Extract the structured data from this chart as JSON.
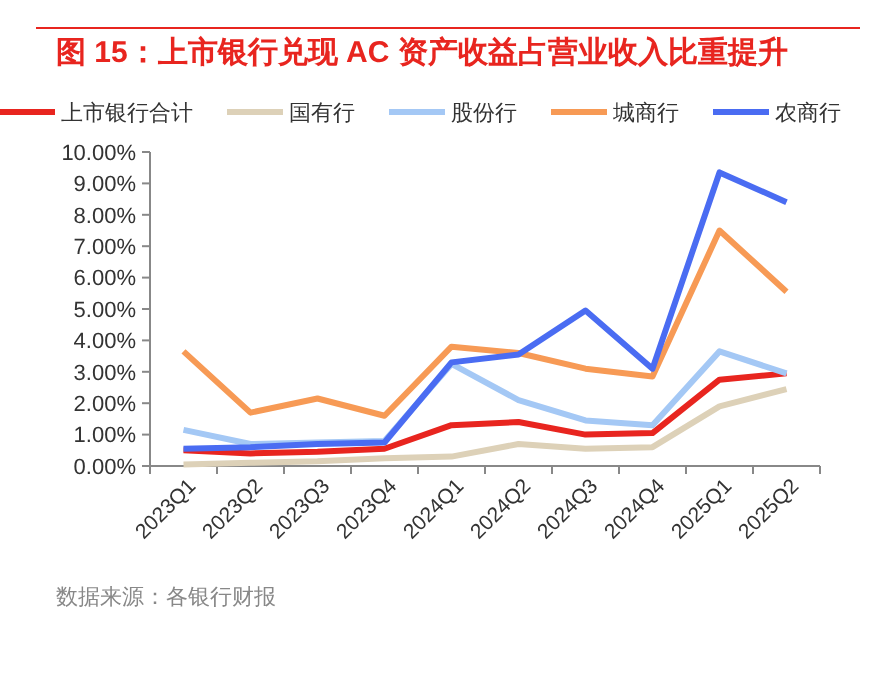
{
  "chart_data": {
    "type": "line",
    "title": "图 15：上市银行兑现 AC 资产收益占营业收入比重提升",
    "categories": [
      "2023Q1",
      "2023Q2",
      "2023Q3",
      "2023Q4",
      "2024Q1",
      "2024Q2",
      "2024Q3",
      "2024Q4",
      "2025Q1",
      "2025Q2"
    ],
    "series": [
      {
        "name": "上市银行合计",
        "color": "#e8251f",
        "values": [
          0.5,
          0.4,
          0.45,
          0.55,
          1.3,
          1.4,
          1.0,
          1.05,
          2.75,
          2.95
        ]
      },
      {
        "name": "国有行",
        "color": "#ddd1b8",
        "values": [
          0.05,
          0.1,
          0.15,
          0.25,
          0.3,
          0.7,
          0.55,
          0.6,
          1.9,
          2.45
        ]
      },
      {
        "name": "股份行",
        "color": "#a4c8f5",
        "values": [
          1.15,
          0.7,
          0.75,
          0.8,
          3.25,
          2.1,
          1.45,
          1.3,
          3.65,
          2.95
        ]
      },
      {
        "name": "城商行",
        "color": "#f79a55",
        "values": [
          3.65,
          1.7,
          2.15,
          1.6,
          3.8,
          3.6,
          3.1,
          2.85,
          7.5,
          5.55
        ]
      },
      {
        "name": "农商行",
        "color": "#4a6cf2",
        "values": [
          0.55,
          0.6,
          0.7,
          0.75,
          3.3,
          3.55,
          4.95,
          3.1,
          9.35,
          8.4
        ]
      }
    ],
    "ylim": [
      0,
      10
    ],
    "yticks": [
      {
        "value": 0,
        "label": "0.00%"
      },
      {
        "value": 1,
        "label": "1.00%"
      },
      {
        "value": 2,
        "label": "2.00%"
      },
      {
        "value": 3,
        "label": "3.00%"
      },
      {
        "value": 4,
        "label": "4.00%"
      },
      {
        "value": 5,
        "label": "5.00%"
      },
      {
        "value": 6,
        "label": "6.00%"
      },
      {
        "value": 7,
        "label": "7.00%"
      },
      {
        "value": 8,
        "label": "8.00%"
      },
      {
        "value": 9,
        "label": "9.00%"
      },
      {
        "value": 10,
        "label": "10.00%"
      }
    ],
    "grid": false,
    "legend": "top",
    "marker": "none",
    "line_style": "solid",
    "annotations": [
      "数据来源：各银行财报"
    ]
  }
}
